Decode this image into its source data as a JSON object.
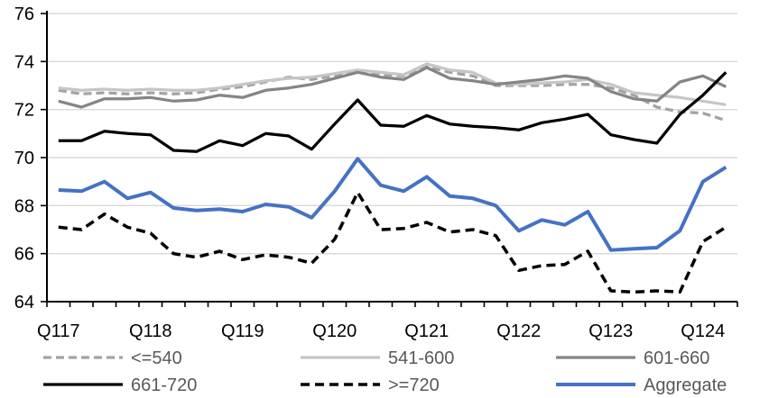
{
  "chart_data": {
    "type": "line",
    "title": "",
    "xlabel": "",
    "ylabel": "",
    "grid": "horizontal",
    "legend_position": "bottom",
    "x": [
      "2017Q1",
      "2017Q2",
      "2017Q3",
      "2017Q4",
      "2018Q1",
      "2018Q2",
      "2018Q3",
      "2018Q4",
      "2019Q1",
      "2019Q2",
      "2019Q3",
      "2019Q4",
      "2020Q1",
      "2020Q2",
      "2020Q3",
      "2020Q4",
      "2021Q1",
      "2021Q2",
      "2021Q3",
      "2021Q4",
      "2022Q1",
      "2022Q2",
      "2022Q3",
      "2022Q4",
      "2023Q1",
      "2023Q2",
      "2023Q3",
      "2023Q4",
      "2024Q1",
      "2024Q2"
    ],
    "x_axis": {
      "tick_labels": [
        "Q117",
        "Q118",
        "Q119",
        "Q120",
        "Q121",
        "Q122",
        "Q123",
        "Q124"
      ],
      "tick_label_indices": [
        0,
        4,
        8,
        12,
        16,
        20,
        24,
        28
      ]
    },
    "y_axis": {
      "min": 64,
      "max": 76,
      "step": 2,
      "tick_labels": [
        "64",
        "66",
        "68",
        "70",
        "72",
        "74",
        "76"
      ],
      "tick_values": [
        64,
        66,
        68,
        70,
        72,
        74,
        76
      ]
    },
    "series": [
      {
        "key": "le540",
        "name": "<=540",
        "color": "#a3a3a3",
        "dash": "9 5",
        "width": 3.25,
        "values": [
          72.8,
          72.65,
          72.7,
          72.65,
          72.7,
          72.65,
          72.7,
          72.85,
          72.95,
          73.15,
          73.35,
          73.25,
          73.4,
          73.6,
          73.45,
          73.4,
          73.8,
          73.55,
          73.4,
          73.0,
          73.0,
          73.0,
          73.05,
          73.05,
          72.9,
          72.6,
          72.1,
          71.9,
          71.85,
          71.55
        ]
      },
      {
        "key": "s541-600",
        "name": "541-600",
        "color": "#c6c6c6",
        "dash": null,
        "width": 3.25,
        "values": [
          72.9,
          72.8,
          72.85,
          72.8,
          72.85,
          72.8,
          72.8,
          72.9,
          73.05,
          73.2,
          73.3,
          73.35,
          73.5,
          73.65,
          73.55,
          73.45,
          73.9,
          73.65,
          73.55,
          73.1,
          73.05,
          73.1,
          73.15,
          73.25,
          73.05,
          72.7,
          72.6,
          72.5,
          72.35,
          72.2
        ]
      },
      {
        "key": "s601-660",
        "name": "601-660",
        "color": "#858585",
        "dash": null,
        "width": 3.25,
        "values": [
          72.35,
          72.1,
          72.45,
          72.45,
          72.5,
          72.35,
          72.4,
          72.6,
          72.5,
          72.8,
          72.9,
          73.05,
          73.3,
          73.55,
          73.35,
          73.25,
          73.75,
          73.3,
          73.2,
          73.05,
          73.15,
          73.25,
          73.4,
          73.3,
          72.75,
          72.45,
          72.35,
          73.15,
          73.4,
          72.95
        ]
      },
      {
        "key": "s661-720",
        "name": "661-720",
        "color": "#000000",
        "dash": null,
        "width": 3.25,
        "values": [
          70.7,
          70.7,
          71.1,
          71.0,
          70.95,
          70.3,
          70.25,
          70.7,
          70.5,
          71.0,
          70.9,
          70.35,
          71.4,
          72.4,
          71.35,
          71.3,
          71.75,
          71.4,
          71.3,
          71.25,
          71.15,
          71.45,
          71.6,
          71.8,
          70.95,
          70.75,
          70.6,
          71.8,
          72.6,
          73.55
        ]
      },
      {
        "key": "ge720",
        "name": ">=720",
        "color": "#000000",
        "dash": "10 6",
        "width": 3.5,
        "values": [
          67.1,
          67.0,
          67.65,
          67.1,
          66.85,
          66.0,
          65.85,
          66.1,
          65.75,
          65.95,
          65.85,
          65.6,
          66.6,
          68.55,
          67.0,
          67.05,
          67.3,
          66.9,
          67.0,
          66.75,
          65.3,
          65.5,
          65.55,
          66.1,
          64.45,
          64.4,
          64.45,
          64.4,
          66.5,
          67.1
        ]
      },
      {
        "key": "aggregate",
        "name": "Aggregate",
        "color": "#4472c4",
        "dash": null,
        "width": 4,
        "values": [
          68.65,
          68.6,
          69.0,
          68.3,
          68.55,
          67.9,
          67.8,
          67.85,
          67.75,
          68.05,
          67.95,
          67.5,
          68.6,
          69.95,
          68.85,
          68.6,
          69.2,
          68.4,
          68.3,
          68.0,
          66.95,
          67.4,
          67.2,
          67.75,
          66.15,
          66.2,
          66.25,
          66.95,
          69.0,
          69.6
        ]
      }
    ]
  },
  "colors": {
    "background": "#ffffff",
    "gridline": "#d9d9d9",
    "axis": "#000000",
    "axis_tick_label": "#000000",
    "legend_text": "#595959"
  }
}
